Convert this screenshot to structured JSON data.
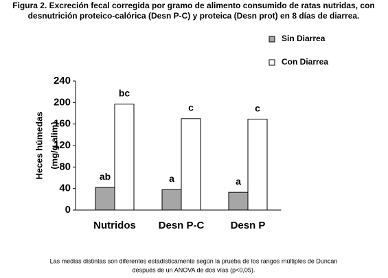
{
  "chart_data": {
    "type": "bar",
    "title_lines": [
      "Figura 2. Excreción fecal corregida por gramo de alimento consumido de ratas nutridas, con",
      "desnutrición proteico-calórica (Desn P-C) y proteica (Desn prot) en 8 días de diarrea."
    ],
    "y_label_lines": [
      "Heces húmedas",
      "(mg/g alim)"
    ],
    "categories": [
      "Nutridos",
      "Desn P-C",
      "Desn P"
    ],
    "series": [
      {
        "name": "Sin Diarrea",
        "color": "#a6a6a6",
        "values": [
          42,
          38,
          33
        ],
        "letters": [
          "ab",
          "a",
          "a"
        ]
      },
      {
        "name": "Con Diarrea",
        "color": "#ffffff",
        "values": [
          197,
          170,
          169
        ],
        "letters": [
          "bc",
          "c",
          "c"
        ]
      }
    ],
    "ylim": [
      0,
      240
    ],
    "yticks": [
      0,
      40,
      80,
      120,
      160,
      200,
      240
    ],
    "footnote_lines": [
      "Las medias distintas  son diferentes estadísticamente según la prueba de los rangos múltiples de Duncan",
      "después de un ANOVA de dos vías (p<0,05)."
    ]
  }
}
